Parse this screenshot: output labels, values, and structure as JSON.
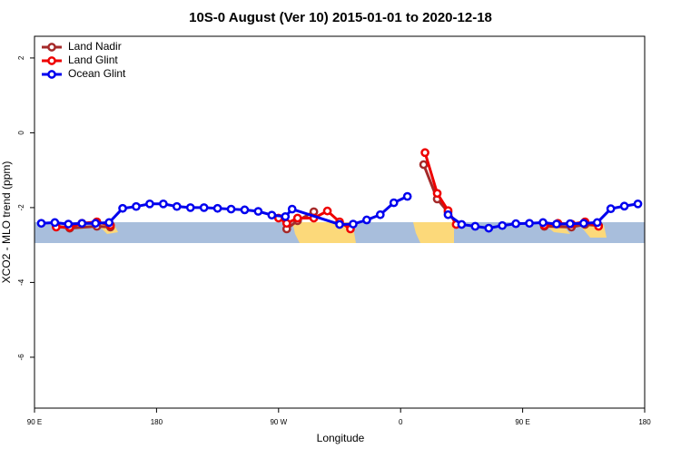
{
  "chart_data": {
    "type": "line",
    "title": "10S-0 August (Ver 10)   2015-01-01 to 2020-12-18",
    "x_label": "Longitude",
    "y_label": "XCO2 - MLO trend (ppm)",
    "xlim": [
      90,
      540
    ],
    "xticks": [
      {
        "value": 90,
        "label": "90 E"
      },
      180,
      {
        "value": 270,
        "label": "90 W"
      },
      {
        "value": 360,
        "label": "0"
      },
      {
        "value": 450,
        "label": "90 E"
      },
      {
        "value": 540,
        "label": "180"
      }
    ],
    "ylim": [
      -7.36,
      2.58
    ],
    "yticks": [
      2,
      0,
      -2,
      -4,
      -6
    ],
    "legend": "top-left",
    "series": [
      {
        "name": "Land Nadir",
        "color": "#a52a2a",
        "x": [
          106,
          116,
          136,
          146,
          null,
          276,
          284,
          296,
          null,
          377,
          387,
          395,
          null,
          466,
          486,
          496,
          506
        ],
        "values": [
          -2.5,
          -2.55,
          -2.5,
          -2.52,
          null,
          -2.57,
          -2.35,
          -2.11,
          null,
          -0.85,
          -1.77,
          -2.12,
          null,
          -2.5,
          -2.52,
          -2.45,
          -2.48
        ]
      },
      {
        "name": "Land Glint",
        "color": "#ee0000",
        "x": [
          106,
          116,
          125,
          136,
          146,
          null,
          270,
          276,
          284,
          296,
          306,
          315,
          323,
          null,
          378,
          387,
          395,
          401,
          null,
          466,
          476,
          486,
          496,
          506
        ],
        "values": [
          -2.52,
          -2.52,
          -2.42,
          -2.38,
          -2.47,
          null,
          -2.28,
          -2.42,
          -2.28,
          -2.28,
          -2.09,
          -2.38,
          -2.57,
          null,
          -0.53,
          -1.62,
          -2.08,
          -2.45,
          null,
          -2.47,
          -2.42,
          -2.44,
          -2.38,
          -2.5
        ]
      },
      {
        "name": "Ocean Glint",
        "color": "#0000ee",
        "x": [
          95,
          105,
          115,
          125,
          135,
          145,
          155,
          165,
          175,
          185,
          195,
          205,
          215,
          225,
          235,
          245,
          255,
          265,
          275,
          280,
          315,
          325,
          335,
          345,
          355,
          365,
          null,
          395,
          405,
          415,
          425,
          435,
          445,
          455,
          465,
          475,
          485,
          495,
          505,
          515,
          525,
          535
        ],
        "values": [
          -2.42,
          -2.4,
          -2.44,
          -2.42,
          -2.42,
          -2.4,
          -2.02,
          -1.97,
          -1.9,
          -1.9,
          -1.97,
          -2.0,
          -2.0,
          -2.02,
          -2.04,
          -2.06,
          -2.1,
          -2.2,
          -2.24,
          -2.04,
          -2.45,
          -2.44,
          -2.33,
          -2.19,
          -1.87,
          -1.7,
          null,
          -2.19,
          -2.45,
          -2.5,
          -2.55,
          -2.48,
          -2.43,
          -2.42,
          -2.4,
          -2.44,
          -2.43,
          -2.42,
          -2.4,
          -2.03,
          -1.96,
          -1.9
        ]
      }
    ]
  }
}
